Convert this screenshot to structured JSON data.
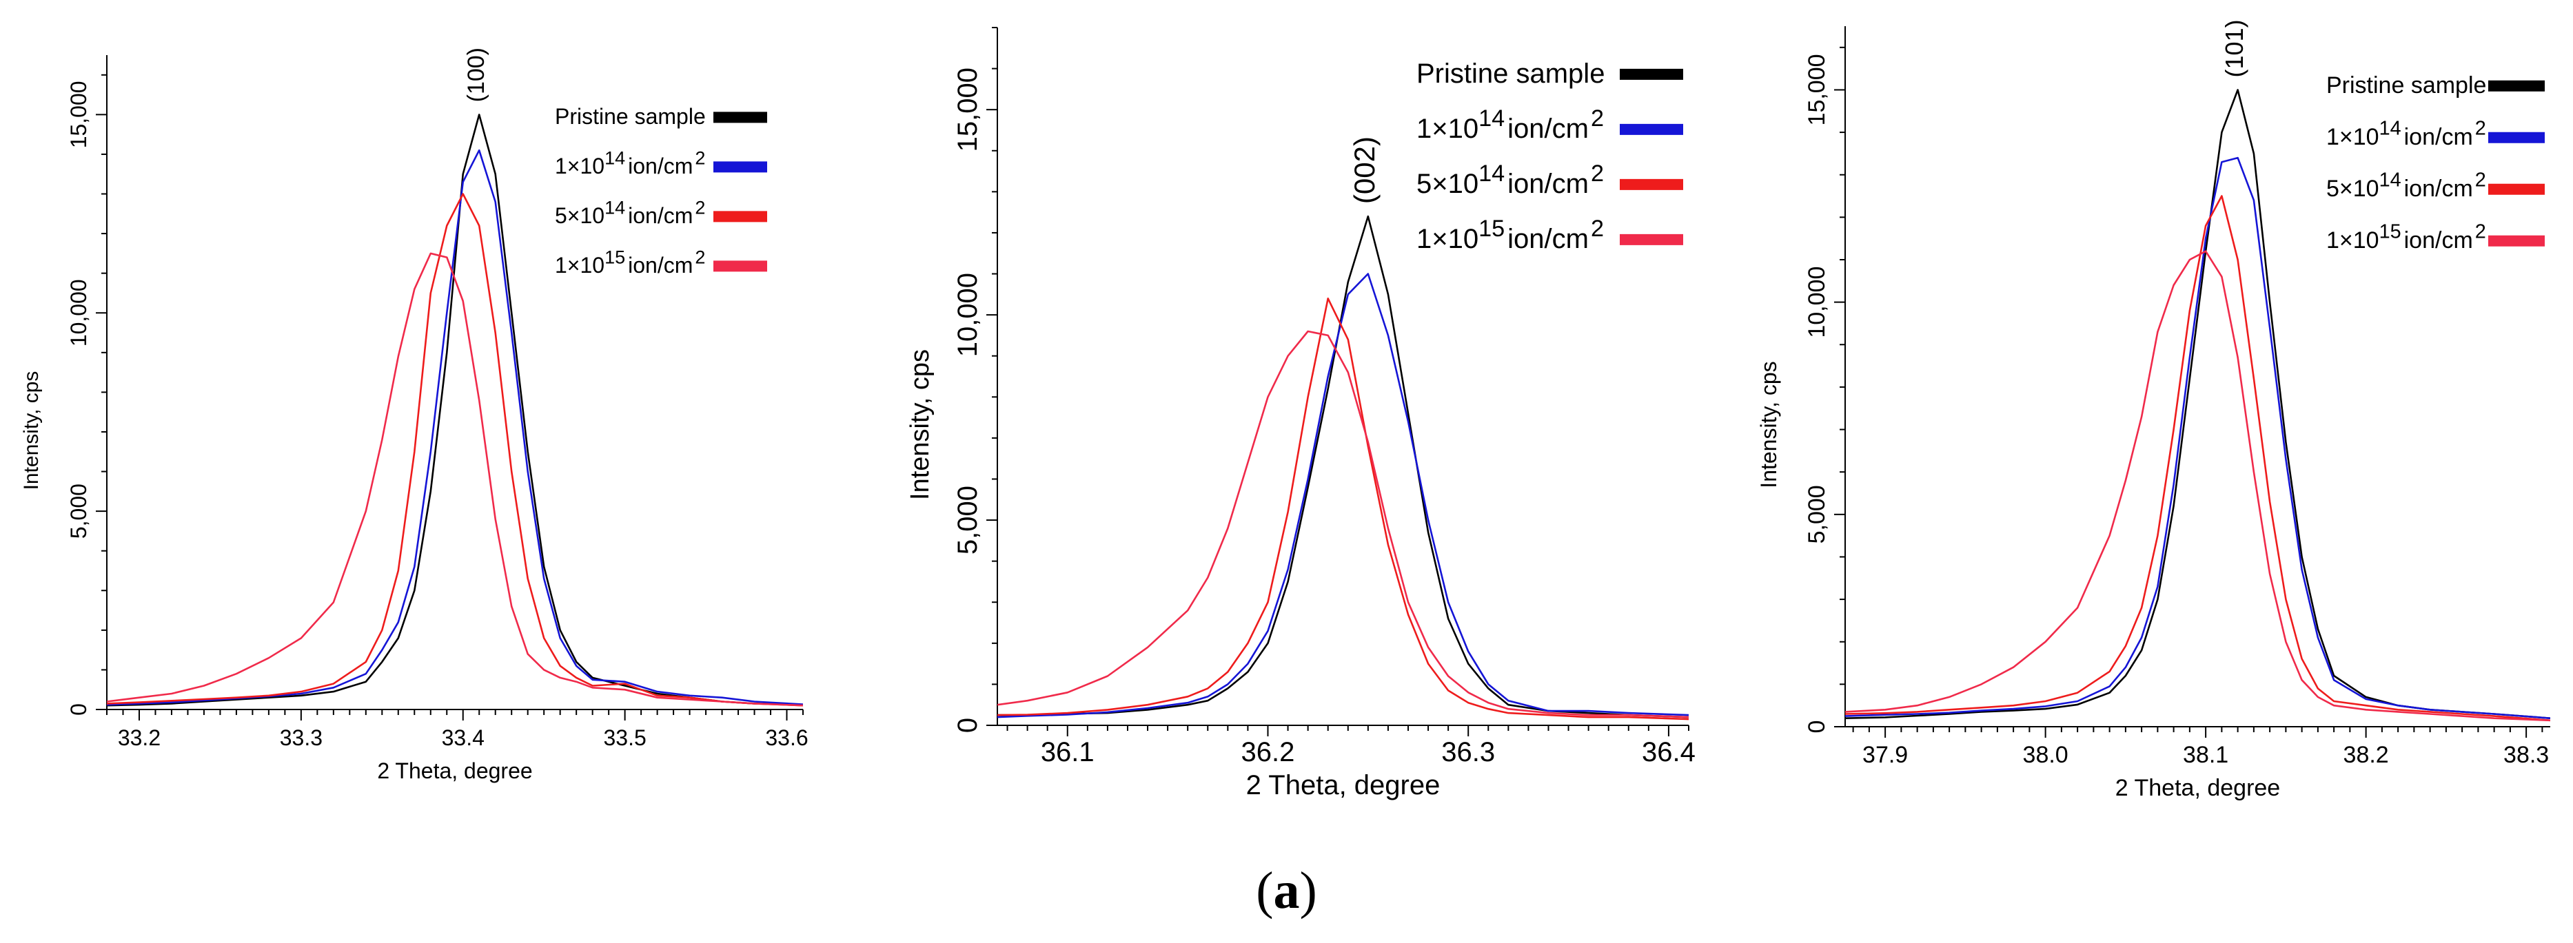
{
  "figure": {
    "caption_open": "(",
    "caption_letter": "a",
    "caption_close": ")"
  },
  "colors": {
    "pristine": "#000000",
    "d1e14": "#1515d6",
    "d5e14": "#ee1c1c",
    "d1e15": "#f02a4a",
    "axis": "#000000"
  },
  "chart_data": [
    {
      "type": "line",
      "peak_label": "(100)",
      "xlabel": "2 Theta, degree",
      "ylabel": "Intensity, cps",
      "xlim": [
        33.18,
        33.61
      ],
      "ylim": [
        0,
        16500
      ],
      "xticks": [
        33.2,
        33.3,
        33.4,
        33.5,
        33.6
      ],
      "xtick_labels": [
        "33.2",
        "33.3",
        "33.4",
        "33.5",
        "33.6"
      ],
      "yticks": [
        0,
        5000,
        10000,
        15000
      ],
      "ytick_labels": [
        "0",
        "5,000",
        "10,000",
        "15,000"
      ],
      "legend_position": "top-right",
      "series": [
        {
          "key": "pristine",
          "name": "Pristine sample",
          "x": [
            33.18,
            33.2,
            33.22,
            33.24,
            33.26,
            33.28,
            33.3,
            33.32,
            33.34,
            33.35,
            33.36,
            33.37,
            33.38,
            33.39,
            33.4,
            33.41,
            33.42,
            33.43,
            33.44,
            33.45,
            33.46,
            33.47,
            33.48,
            33.5,
            33.52,
            33.54,
            33.56,
            33.58,
            33.61
          ],
          "y": [
            100,
            120,
            150,
            200,
            250,
            300,
            350,
            450,
            700,
            1200,
            1800,
            3000,
            5500,
            9000,
            13500,
            15000,
            13500,
            10000,
            6500,
            3600,
            2000,
            1200,
            800,
            600,
            400,
            300,
            200,
            150,
            120
          ]
        },
        {
          "key": "d1e14",
          "name": "1×10¹⁴ion/cm²",
          "x": [
            33.18,
            33.2,
            33.22,
            33.24,
            33.26,
            33.28,
            33.3,
            33.32,
            33.34,
            33.35,
            33.36,
            33.37,
            33.38,
            33.39,
            33.4,
            33.41,
            33.42,
            33.43,
            33.44,
            33.45,
            33.46,
            33.47,
            33.48,
            33.5,
            33.52,
            33.54,
            33.56,
            33.58,
            33.61
          ],
          "y": [
            120,
            150,
            180,
            230,
            280,
            330,
            400,
            550,
            900,
            1500,
            2200,
            3600,
            6500,
            10000,
            13300,
            14100,
            12800,
            9500,
            6000,
            3300,
            1800,
            1100,
            750,
            700,
            450,
            350,
            300,
            200,
            130
          ]
        },
        {
          "key": "d5e14",
          "name": "5×10¹⁴ion/cm²",
          "x": [
            33.18,
            33.2,
            33.22,
            33.24,
            33.26,
            33.28,
            33.3,
            33.32,
            33.34,
            33.35,
            33.36,
            33.37,
            33.38,
            33.39,
            33.4,
            33.41,
            33.42,
            33.43,
            33.44,
            33.45,
            33.46,
            33.47,
            33.48,
            33.5,
            33.52,
            33.54,
            33.56,
            33.58,
            33.61
          ],
          "y": [
            150,
            180,
            220,
            260,
            300,
            350,
            450,
            650,
            1200,
            2000,
            3500,
            6500,
            10500,
            12200,
            13000,
            12200,
            9500,
            6000,
            3300,
            1800,
            1100,
            800,
            600,
            650,
            350,
            300,
            200,
            150,
            100
          ]
        },
        {
          "key": "d1e15",
          "name": "1×10¹⁵ion/cm²",
          "x": [
            33.18,
            33.2,
            33.22,
            33.24,
            33.26,
            33.28,
            33.3,
            33.32,
            33.34,
            33.35,
            33.36,
            33.37,
            33.38,
            33.39,
            33.4,
            33.41,
            33.42,
            33.43,
            33.44,
            33.45,
            33.46,
            33.47,
            33.48,
            33.5,
            33.52,
            33.54,
            33.56,
            33.58,
            33.61
          ],
          "y": [
            200,
            300,
            400,
            600,
            900,
            1300,
            1800,
            2700,
            5000,
            6800,
            8900,
            10600,
            11500,
            11400,
            10300,
            7800,
            4800,
            2600,
            1400,
            1000,
            800,
            700,
            550,
            500,
            300,
            250,
            200,
            150,
            100
          ]
        }
      ]
    },
    {
      "type": "line",
      "peak_label": "(002)",
      "xlabel": "2 Theta, degree",
      "ylabel": "Intensity, cps",
      "xlim": [
        36.065,
        36.41
      ],
      "ylim": [
        0,
        17000
      ],
      "xticks": [
        36.1,
        36.2,
        36.3,
        36.4
      ],
      "xtick_labels": [
        "36.1",
        "36.2",
        "36.3",
        "36.4"
      ],
      "yticks": [
        0,
        5000,
        10000,
        15000
      ],
      "ytick_labels": [
        "0",
        "5,000",
        "10,000",
        "15,000"
      ],
      "legend_position": "top-right",
      "series": [
        {
          "key": "pristine",
          "name": "Pristine sample",
          "x": [
            36.065,
            36.08,
            36.1,
            36.12,
            36.14,
            36.16,
            36.17,
            36.18,
            36.19,
            36.2,
            36.21,
            36.22,
            36.23,
            36.24,
            36.25,
            36.26,
            36.27,
            36.28,
            36.29,
            36.3,
            36.31,
            36.32,
            36.34,
            36.36,
            36.38,
            36.41
          ],
          "y": [
            250,
            250,
            280,
            300,
            380,
            500,
            600,
            900,
            1300,
            2000,
            3500,
            5800,
            8200,
            10800,
            12400,
            10500,
            7600,
            4700,
            2600,
            1500,
            900,
            500,
            350,
            300,
            250,
            200
          ]
        },
        {
          "key": "d1e14",
          "name": "1×10¹⁴ion/cm²",
          "x": [
            36.065,
            36.08,
            36.1,
            36.12,
            36.14,
            36.16,
            36.17,
            36.18,
            36.19,
            36.2,
            36.21,
            36.22,
            36.23,
            36.24,
            36.25,
            36.26,
            36.27,
            36.28,
            36.29,
            36.3,
            36.31,
            36.32,
            36.34,
            36.36,
            36.38,
            36.41
          ],
          "y": [
            200,
            230,
            260,
            320,
            420,
            550,
            700,
            1000,
            1500,
            2300,
            3800,
            6000,
            8500,
            10500,
            11000,
            9500,
            7400,
            5000,
            3000,
            1800,
            1000,
            600,
            350,
            350,
            300,
            250
          ]
        },
        {
          "key": "d5e14",
          "name": "5×10¹⁴ion/cm²",
          "x": [
            36.065,
            36.08,
            36.1,
            36.12,
            36.14,
            36.16,
            36.17,
            36.18,
            36.19,
            36.2,
            36.21,
            36.22,
            36.23,
            36.24,
            36.25,
            36.26,
            36.27,
            36.28,
            36.29,
            36.3,
            36.31,
            36.32,
            36.34,
            36.36,
            36.38,
            36.41
          ],
          "y": [
            250,
            260,
            300,
            380,
            500,
            700,
            900,
            1300,
            2000,
            3000,
            5200,
            8000,
            10400,
            9400,
            6800,
            4400,
            2700,
            1500,
            850,
            550,
            400,
            300,
            250,
            200,
            200,
            150
          ]
        },
        {
          "key": "d1e15",
          "name": "1×10¹⁵ion/cm²",
          "x": [
            36.065,
            36.08,
            36.1,
            36.12,
            36.14,
            36.16,
            36.17,
            36.18,
            36.19,
            36.2,
            36.21,
            36.22,
            36.23,
            36.24,
            36.25,
            36.26,
            36.27,
            36.28,
            36.29,
            36.3,
            36.31,
            36.32,
            36.34,
            36.36,
            36.38,
            36.41
          ],
          "y": [
            500,
            600,
            800,
            1200,
            1900,
            2800,
            3600,
            4800,
            6400,
            8000,
            9000,
            9600,
            9500,
            8600,
            6900,
            4800,
            3000,
            1900,
            1200,
            800,
            550,
            400,
            300,
            250,
            250,
            200
          ]
        }
      ]
    },
    {
      "type": "line",
      "peak_label": "(101)",
      "xlabel": "2 Theta, degree",
      "ylabel": "Intensity, cps",
      "xlim": [
        37.875,
        38.315
      ],
      "ylim": [
        0,
        16500
      ],
      "xticks": [
        37.9,
        38.0,
        38.1,
        38.2,
        38.3
      ],
      "xtick_labels": [
        "37.9",
        "38.0",
        "38.1",
        "38.2",
        "38.3"
      ],
      "yticks": [
        0,
        5000,
        10000,
        15000
      ],
      "ytick_labels": [
        "0",
        "5,000",
        "10,000",
        "15,000"
      ],
      "legend_position": "top-right",
      "series": [
        {
          "key": "pristine",
          "name": "Pristine sample",
          "x": [
            37.875,
            37.9,
            37.92,
            37.94,
            37.96,
            37.98,
            38.0,
            38.02,
            38.04,
            38.05,
            38.06,
            38.07,
            38.08,
            38.09,
            38.1,
            38.11,
            38.12,
            38.13,
            38.14,
            38.15,
            38.16,
            38.17,
            38.18,
            38.2,
            38.22,
            38.24,
            38.26,
            38.28,
            38.315
          ],
          "y": [
            200,
            220,
            260,
            300,
            350,
            380,
            420,
            520,
            800,
            1200,
            1800,
            3000,
            5200,
            8200,
            11200,
            14000,
            15000,
            13500,
            10000,
            6700,
            4000,
            2300,
            1200,
            700,
            500,
            400,
            350,
            300,
            200
          ]
        },
        {
          "key": "d1e14",
          "name": "1×10¹⁴ion/cm²",
          "x": [
            37.875,
            37.9,
            37.92,
            37.94,
            37.96,
            37.98,
            38.0,
            38.02,
            38.04,
            38.05,
            38.06,
            38.07,
            38.08,
            38.09,
            38.1,
            38.11,
            38.12,
            38.13,
            38.14,
            38.15,
            38.16,
            38.17,
            38.18,
            38.2,
            38.22,
            38.24,
            38.26,
            38.28,
            38.315
          ],
          "y": [
            250,
            280,
            300,
            330,
            380,
            420,
            480,
            600,
            950,
            1400,
            2100,
            3300,
            5700,
            8700,
            11500,
            13300,
            13400,
            12400,
            9400,
            6300,
            3700,
            2100,
            1100,
            650,
            500,
            400,
            350,
            300,
            200
          ]
        },
        {
          "key": "d5e14",
          "name": "5×10¹⁴ion/cm²",
          "x": [
            37.875,
            37.9,
            37.92,
            37.94,
            37.96,
            37.98,
            38.0,
            38.02,
            38.04,
            38.05,
            38.06,
            38.07,
            38.08,
            38.09,
            38.1,
            38.11,
            38.12,
            38.13,
            38.14,
            38.15,
            38.16,
            38.17,
            38.18,
            38.2,
            38.22,
            38.24,
            38.26,
            38.28,
            38.315
          ],
          "y": [
            300,
            320,
            350,
            400,
            450,
            500,
            600,
            800,
            1300,
            1900,
            2800,
            4500,
            7000,
            9800,
            11800,
            12500,
            11000,
            8200,
            5300,
            3000,
            1600,
            900,
            600,
            500,
            400,
            350,
            300,
            250,
            150
          ]
        },
        {
          "key": "d1e15",
          "name": "1×10¹⁵ion/cm²",
          "x": [
            37.875,
            37.9,
            37.92,
            37.94,
            37.96,
            37.98,
            38.0,
            38.02,
            38.04,
            38.05,
            38.06,
            38.07,
            38.08,
            38.09,
            38.1,
            38.11,
            38.12,
            38.13,
            38.14,
            38.15,
            38.16,
            38.17,
            38.18,
            38.2,
            38.22,
            38.24,
            38.26,
            38.28,
            38.315
          ],
          "y": [
            350,
            400,
            500,
            700,
            1000,
            1400,
            2000,
            2800,
            4500,
            5800,
            7300,
            9300,
            10400,
            11000,
            11200,
            10600,
            8700,
            6000,
            3600,
            2000,
            1100,
            700,
            500,
            400,
            350,
            300,
            250,
            200,
            150
          ]
        }
      ]
    }
  ]
}
